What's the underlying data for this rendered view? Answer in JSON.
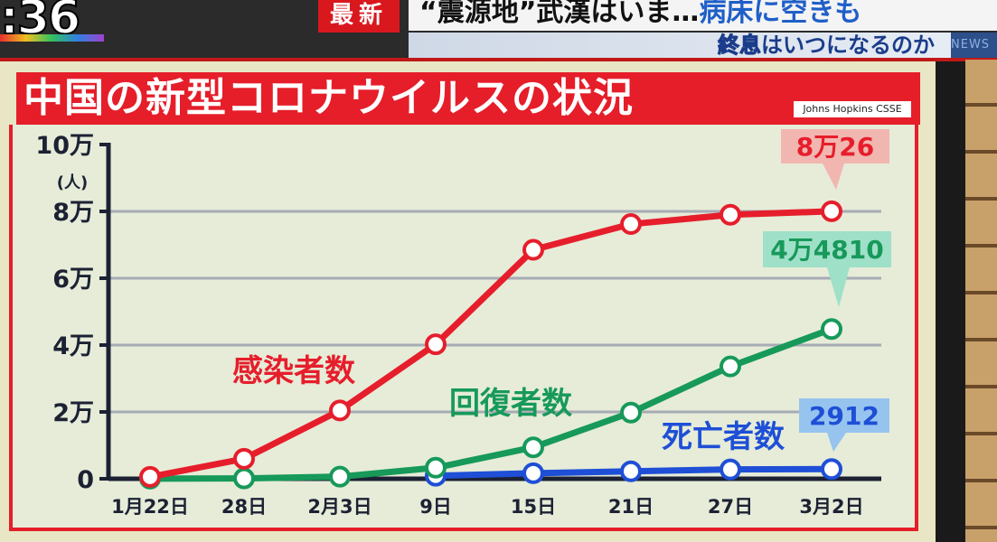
{
  "broadcast": {
    "clock": ":36",
    "latest_label": "最新",
    "headline_main_a": "“震源地”武漢はいま…",
    "headline_main_b": "病床に空きも",
    "headline_sub_a": "終息",
    "headline_sub_b": "はいつになるのか",
    "logo": "NEWS"
  },
  "board": {
    "title": "中国の新型コロナウイルスの状況",
    "source": "Johns Hopkins CSSE"
  },
  "colors": {
    "infected": "#e61e2c",
    "recovered": "#17995a",
    "deaths": "#1e4fd6",
    "title_red": "#e51e2a"
  },
  "chart_data": {
    "type": "line",
    "title": "中国の新型コロナウイルスの状況",
    "x": [
      "1月22日",
      "28日",
      "2月3日",
      "9日",
      "15日",
      "21日",
      "27日",
      "3月2日"
    ],
    "y_ticks": [
      "0",
      "2万",
      "4万",
      "6万",
      "8万",
      "10万"
    ],
    "y_unit": "(人)",
    "ylim": [
      0,
      100000
    ],
    "grid": true,
    "series": [
      {
        "name": "感染者数",
        "values": [
          571,
          5974,
          20438,
          40235,
          68500,
          76200,
          78990,
          80026
        ],
        "callout": "8万26"
      },
      {
        "name": "回復者数",
        "values": [
          28,
          103,
          626,
          3300,
          9400,
          19800,
          33600,
          44810
        ],
        "callout": "4万4810"
      },
      {
        "name": "死亡者数",
        "values": [
          17,
          132,
          425,
          908,
          1665,
          2236,
          2788,
          2912
        ],
        "callout": "2912"
      }
    ]
  }
}
